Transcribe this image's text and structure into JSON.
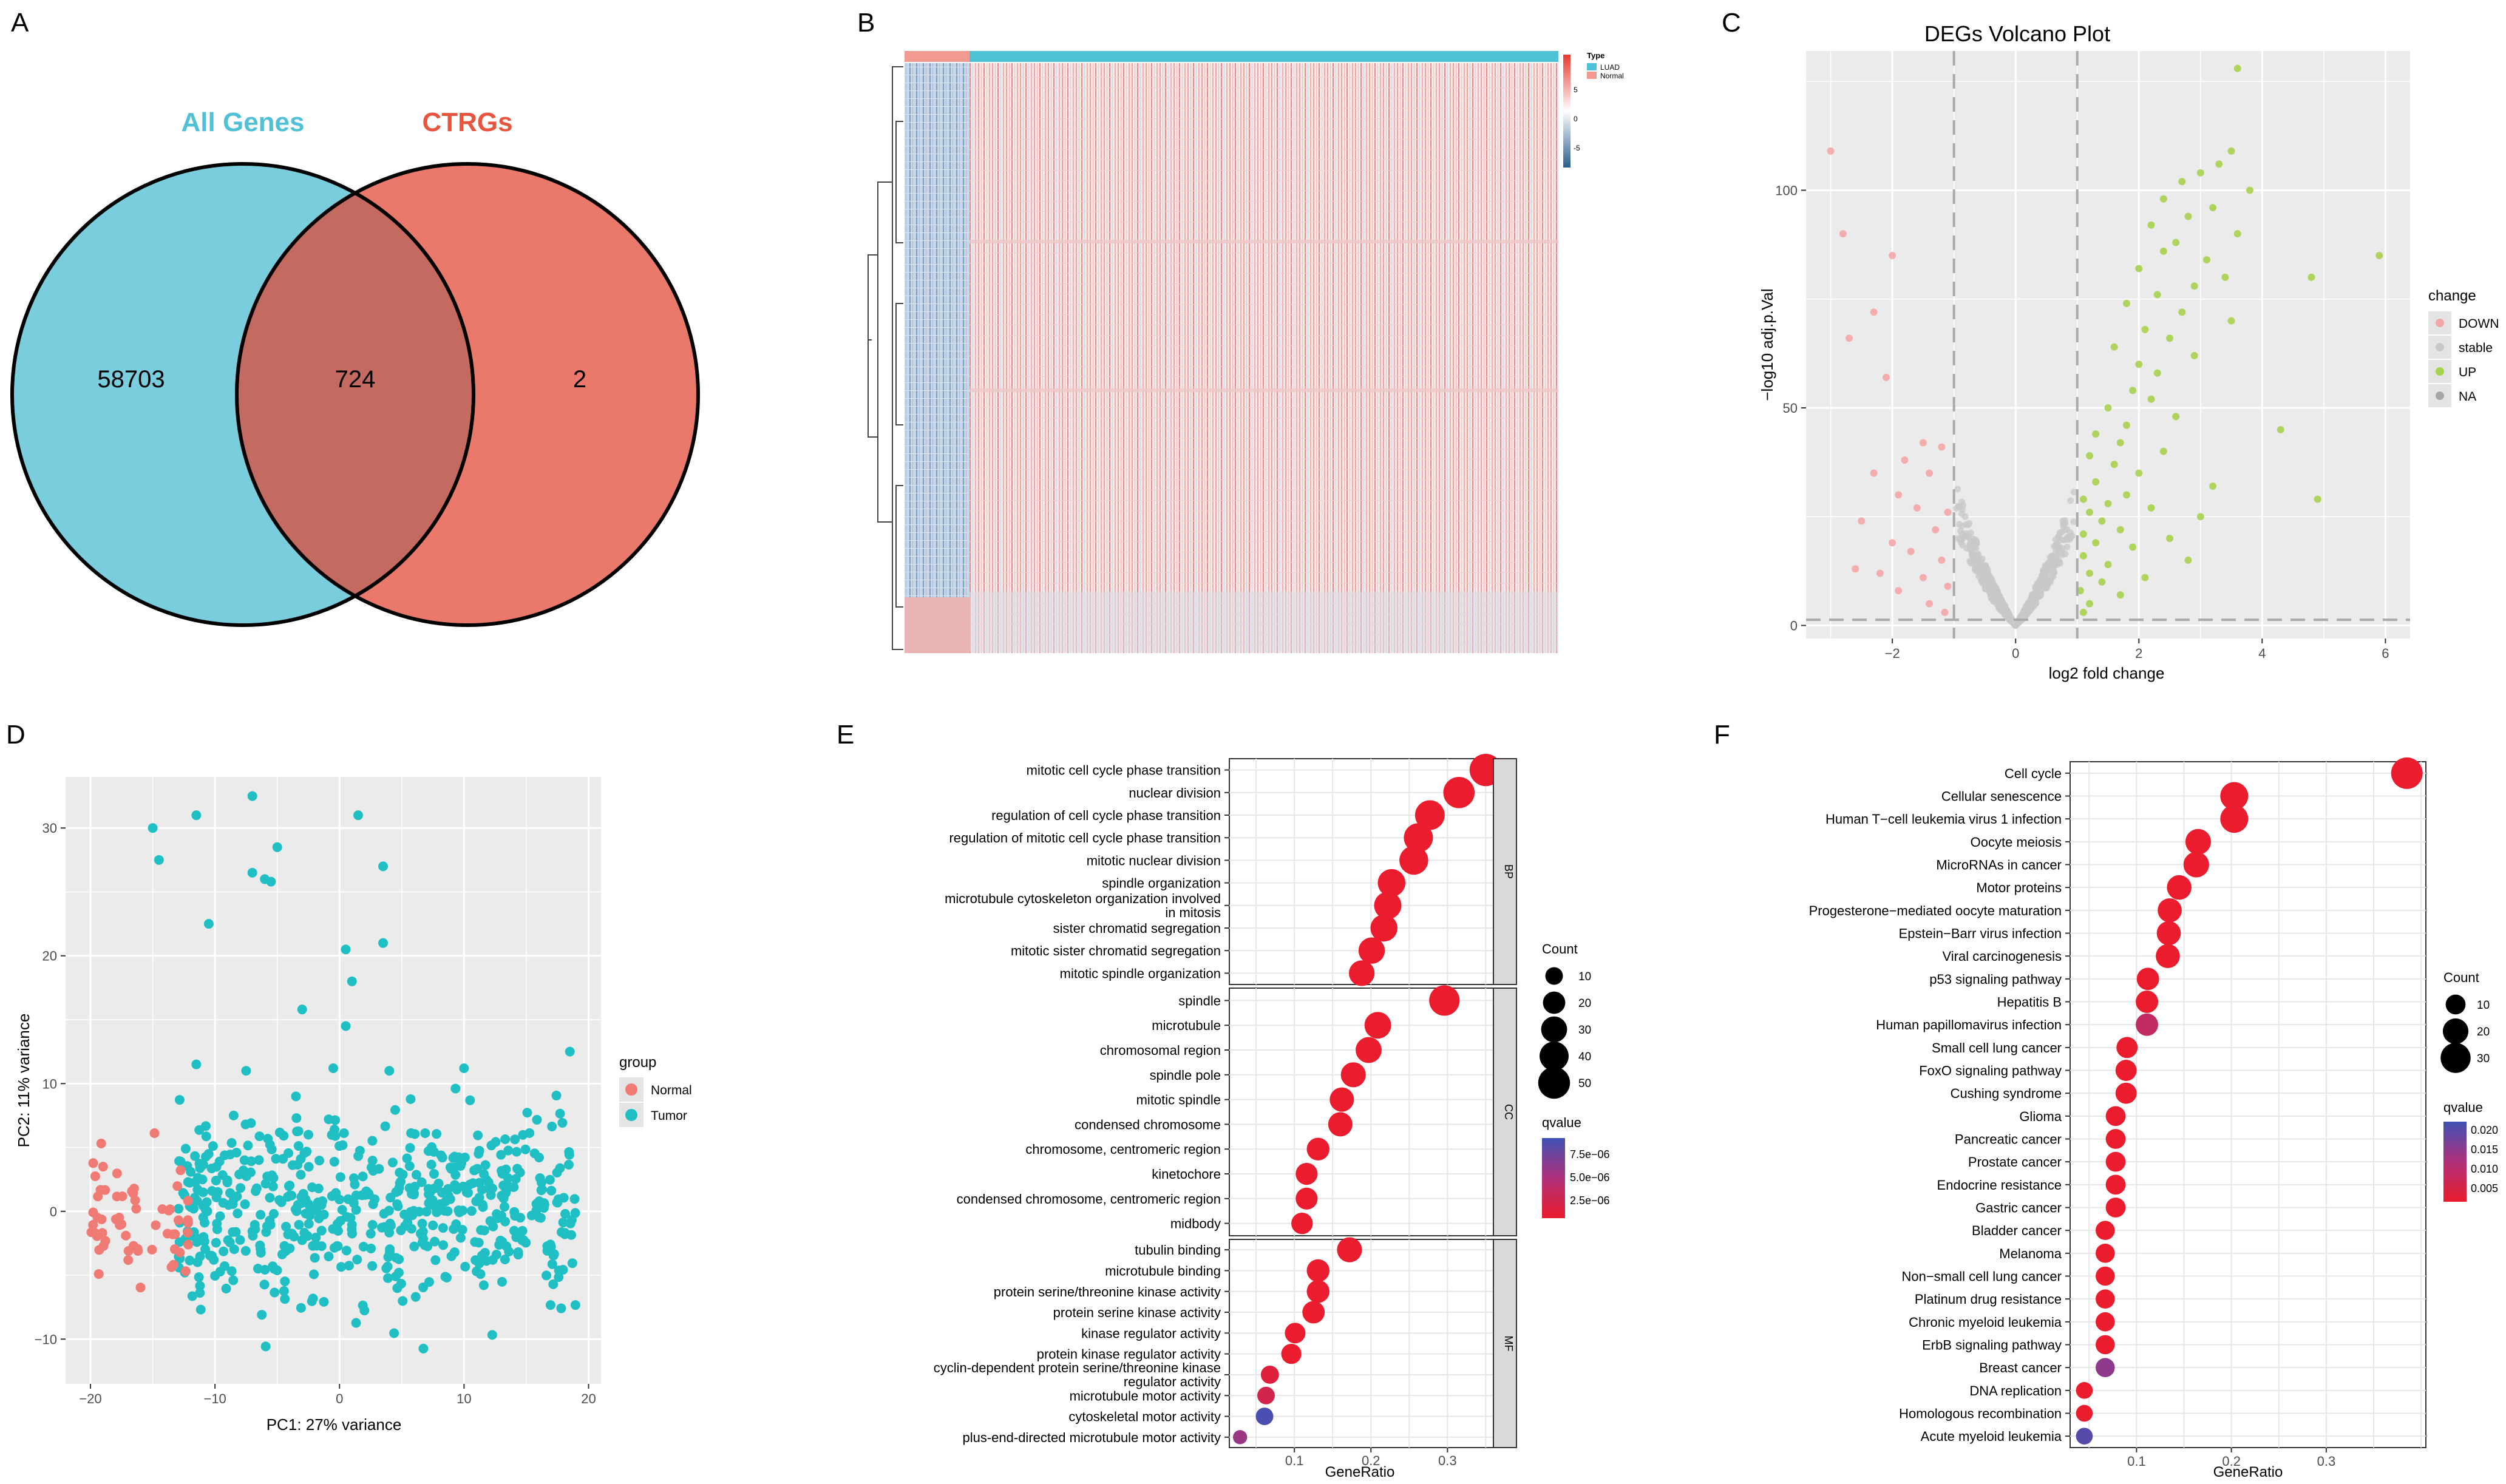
{
  "panel_labels": [
    "A",
    "B",
    "C",
    "D",
    "E",
    "F"
  ],
  "colors": {
    "venn_left": "#79CDDD",
    "venn_right": "#EA796C",
    "venn_overlap": "#C56A60",
    "title_left": "#4FC0D6",
    "title_right": "#E8553F",
    "panel_bg": "#EBEBEB",
    "grid": "#FFFFFF",
    "normal": "#F07A74",
    "tumor": "#1FBFC3",
    "down": "#F4A6A6",
    "stable": "#C8C8C8",
    "up": "#A7D24F",
    "na": "#A6A6A6",
    "heat_high": "#E8392F",
    "heat_low": "#2A5E8C",
    "q_low": "#EA1C2D",
    "q_high": "#3F51B5"
  },
  "chart_data": [
    {
      "type": "venn",
      "panel": "A",
      "sets": [
        "All Genes",
        "CTRGs"
      ],
      "counts": {
        "left_only": "58703",
        "both": "724",
        "right_only": "2"
      }
    },
    {
      "type": "heatmap",
      "panel": "B",
      "annotation_title": "Type",
      "groups": [
        "LUAD",
        "Normal"
      ],
      "colorbar_ticks": [
        "5",
        "0",
        "-5"
      ],
      "value_range": [
        -5,
        5
      ]
    },
    {
      "type": "scatter",
      "panel": "C",
      "title": "DEGs Volcano Plot",
      "xlabel": "log2 fold change",
      "ylabel": "−log10 adj.p.Val",
      "xlim": [
        -3.4,
        6.4
      ],
      "ylim": [
        -3,
        132
      ],
      "xticks": [
        -2,
        0,
        2,
        4,
        6
      ],
      "yticks": [
        0,
        50,
        100
      ],
      "vlines": [
        -1,
        1
      ],
      "hline": 1.3,
      "legend_title": "change",
      "legend": [
        "DOWN",
        "stable",
        "UP",
        "NA"
      ],
      "down_points": [
        [
          -3.0,
          109
        ],
        [
          -2.8,
          90
        ],
        [
          -2.0,
          85
        ],
        [
          -2.3,
          72
        ],
        [
          -2.7,
          66
        ],
        [
          -2.1,
          57
        ],
        [
          -1.8,
          38
        ],
        [
          -1.5,
          42
        ],
        [
          -1.2,
          41
        ],
        [
          -1.4,
          35
        ],
        [
          -2.3,
          35
        ],
        [
          -1.9,
          30
        ],
        [
          -1.6,
          27
        ],
        [
          -1.1,
          26
        ],
        [
          -2.5,
          24
        ],
        [
          -1.3,
          22
        ],
        [
          -2.0,
          19
        ],
        [
          -1.7,
          17
        ],
        [
          -1.2,
          15
        ],
        [
          -2.2,
          12
        ],
        [
          -1.5,
          11
        ],
        [
          -1.1,
          9
        ],
        [
          -2.6,
          13
        ],
        [
          -1.9,
          8
        ],
        [
          -1.4,
          5
        ],
        [
          -1.15,
          3
        ]
      ],
      "up_points": [
        [
          3.6,
          128
        ],
        [
          4.8,
          80
        ],
        [
          5.9,
          85
        ],
        [
          3.5,
          109
        ],
        [
          3.3,
          106
        ],
        [
          3.0,
          104
        ],
        [
          2.7,
          102
        ],
        [
          3.8,
          100
        ],
        [
          2.4,
          98
        ],
        [
          3.2,
          96
        ],
        [
          2.8,
          94
        ],
        [
          2.2,
          92
        ],
        [
          3.6,
          90
        ],
        [
          2.6,
          88
        ],
        [
          2.4,
          86
        ],
        [
          3.1,
          84
        ],
        [
          2.0,
          82
        ],
        [
          3.4,
          80
        ],
        [
          2.9,
          78
        ],
        [
          2.3,
          76
        ],
        [
          1.8,
          74
        ],
        [
          2.7,
          72
        ],
        [
          3.5,
          70
        ],
        [
          2.1,
          68
        ],
        [
          2.5,
          66
        ],
        [
          1.6,
          64
        ],
        [
          2.9,
          62
        ],
        [
          2.0,
          60
        ],
        [
          2.3,
          58
        ],
        [
          1.9,
          54
        ],
        [
          2.2,
          52
        ],
        [
          1.5,
          50
        ],
        [
          2.6,
          48
        ],
        [
          1.8,
          46
        ],
        [
          4.3,
          45
        ],
        [
          1.3,
          44
        ],
        [
          1.7,
          42
        ],
        [
          2.4,
          40
        ],
        [
          1.2,
          39
        ],
        [
          1.6,
          37
        ],
        [
          2.0,
          35
        ],
        [
          1.3,
          33
        ],
        [
          3.2,
          32
        ],
        [
          1.8,
          30
        ],
        [
          1.1,
          29
        ],
        [
          4.9,
          29
        ],
        [
          1.5,
          28
        ],
        [
          2.2,
          27
        ],
        [
          1.2,
          26
        ],
        [
          3.0,
          25
        ],
        [
          1.4,
          24
        ],
        [
          1.7,
          22
        ],
        [
          1.1,
          21
        ],
        [
          2.5,
          20
        ],
        [
          1.3,
          19
        ],
        [
          1.9,
          18
        ],
        [
          1.1,
          16
        ],
        [
          2.8,
          15
        ],
        [
          1.5,
          14
        ],
        [
          1.2,
          12
        ],
        [
          2.1,
          11
        ],
        [
          1.4,
          10
        ],
        [
          1.05,
          8
        ],
        [
          1.7,
          7
        ],
        [
          1.2,
          5
        ],
        [
          1.1,
          3
        ]
      ]
    },
    {
      "type": "scatter",
      "panel": "D",
      "xlabel": "PC1: 27% variance",
      "ylabel": "PC2: 11% variance",
      "xlim": [
        -22,
        21
      ],
      "ylim": [
        -13.5,
        34
      ],
      "xticks": [
        -20,
        -10,
        0,
        10,
        20
      ],
      "yticks": [
        -10,
        0,
        10,
        20,
        30
      ],
      "legend_title": "group",
      "legend": [
        "Normal",
        "Tumor"
      ],
      "tumor_outliers": [
        [
          -7,
          32.5
        ],
        [
          -15,
          30
        ],
        [
          -11.5,
          31
        ],
        [
          1.5,
          31
        ],
        [
          -5,
          28.5
        ],
        [
          -14.5,
          27.5
        ],
        [
          3.5,
          27
        ],
        [
          -7,
          26.5
        ],
        [
          -6,
          26
        ],
        [
          -5.5,
          25.8
        ],
        [
          -10.5,
          22.5
        ],
        [
          3.5,
          21
        ],
        [
          0.5,
          20.5
        ],
        [
          1,
          18
        ],
        [
          -3,
          15.8
        ],
        [
          0.5,
          14.5
        ],
        [
          18.5,
          12.5
        ],
        [
          -0.5,
          11.2
        ],
        [
          10,
          11.2
        ],
        [
          -11.5,
          11.5
        ],
        [
          -7.5,
          11
        ],
        [
          4,
          11
        ],
        [
          -3.5,
          9
        ],
        [
          -8.5,
          7.5
        ],
        [
          -2.5,
          6
        ]
      ]
    },
    {
      "type": "scatter",
      "panel": "E",
      "xlabel": "GeneRatio",
      "xlim": [
        0.015,
        0.36
      ],
      "xticks": [
        0.1,
        0.2,
        0.3
      ],
      "facets": [
        "BP",
        "CC",
        "MF"
      ],
      "size_legend_title": "Count",
      "size_legend": [
        10,
        20,
        30,
        40,
        50
      ],
      "color_legend_title": "qvalue",
      "color_legend": [
        "7.5e−06",
        "5.0e−06",
        "2.5e−06"
      ],
      "terms": [
        {
          "facet": "BP",
          "lines": [
            "mitotic cell cycle phase transition"
          ],
          "x": 0.35,
          "count": 52,
          "q": 0
        },
        {
          "facet": "BP",
          "lines": [
            "nuclear division"
          ],
          "x": 0.315,
          "count": 48,
          "q": 0
        },
        {
          "facet": "BP",
          "lines": [
            "regulation of cell cycle phase transition"
          ],
          "x": 0.277,
          "count": 42,
          "q": 0
        },
        {
          "facet": "BP",
          "lines": [
            "regulation of mitotic cell cycle phase transition"
          ],
          "x": 0.262,
          "count": 40,
          "q": 0
        },
        {
          "facet": "BP",
          "lines": [
            "mitotic nuclear division"
          ],
          "x": 0.256,
          "count": 39,
          "q": 0
        },
        {
          "facet": "BP",
          "lines": [
            "spindle organization"
          ],
          "x": 0.227,
          "count": 35,
          "q": 0
        },
        {
          "facet": "BP",
          "lines": [
            "microtubule cytoskeleton organization involved",
            "in mitosis"
          ],
          "x": 0.222,
          "count": 34,
          "q": 0
        },
        {
          "facet": "BP",
          "lines": [
            "sister chromatid segregation"
          ],
          "x": 0.217,
          "count": 33,
          "q": 0
        },
        {
          "facet": "BP",
          "lines": [
            "mitotic sister chromatid segregation"
          ],
          "x": 0.201,
          "count": 31,
          "q": 0
        },
        {
          "facet": "BP",
          "lines": [
            "mitotic spindle organization"
          ],
          "x": 0.188,
          "count": 29,
          "q": 0
        },
        {
          "facet": "CC",
          "lines": [
            "spindle"
          ],
          "x": 0.296,
          "count": 45,
          "q": 0
        },
        {
          "facet": "CC",
          "lines": [
            "microtubule"
          ],
          "x": 0.209,
          "count": 32,
          "q": 0
        },
        {
          "facet": "CC",
          "lines": [
            "chromosomal region"
          ],
          "x": 0.197,
          "count": 30,
          "q": 0
        },
        {
          "facet": "CC",
          "lines": [
            "spindle pole"
          ],
          "x": 0.177,
          "count": 27,
          "q": 0
        },
        {
          "facet": "CC",
          "lines": [
            "mitotic spindle"
          ],
          "x": 0.162,
          "count": 25,
          "q": 0
        },
        {
          "facet": "CC",
          "lines": [
            "condensed chromosome"
          ],
          "x": 0.16,
          "count": 25,
          "q": 0
        },
        {
          "facet": "CC",
          "lines": [
            "chromosome, centromeric region"
          ],
          "x": 0.131,
          "count": 21,
          "q": 0
        },
        {
          "facet": "CC",
          "lines": [
            "kinetochore"
          ],
          "x": 0.116,
          "count": 19,
          "q": 0
        },
        {
          "facet": "CC",
          "lines": [
            "condensed chromosome, centromeric region"
          ],
          "x": 0.116,
          "count": 19,
          "q": 0
        },
        {
          "facet": "CC",
          "lines": [
            "midbody"
          ],
          "x": 0.11,
          "count": 18,
          "q": 0
        },
        {
          "facet": "MF",
          "lines": [
            "tubulin binding"
          ],
          "x": 0.172,
          "count": 27,
          "q": 0
        },
        {
          "facet": "MF",
          "lines": [
            "microtubule binding"
          ],
          "x": 0.131,
          "count": 21,
          "q": 0
        },
        {
          "facet": "MF",
          "lines": [
            "protein serine/threonine kinase activity"
          ],
          "x": 0.131,
          "count": 21,
          "q": 0
        },
        {
          "facet": "MF",
          "lines": [
            "protein serine kinase activity"
          ],
          "x": 0.125,
          "count": 20,
          "q": 0
        },
        {
          "facet": "MF",
          "lines": [
            "kinase regulator activity"
          ],
          "x": 0.101,
          "count": 16,
          "q": 0
        },
        {
          "facet": "MF",
          "lines": [
            "protein kinase regulator activity"
          ],
          "x": 0.096,
          "count": 15,
          "q": 0
        },
        {
          "facet": "MF",
          "lines": [
            "cyclin-dependent protein serine/threonine kinase",
            "regulator activity"
          ],
          "x": 0.068,
          "count": 11,
          "q": 0.1
        },
        {
          "facet": "MF",
          "lines": [
            "microtubule motor activity"
          ],
          "x": 0.063,
          "count": 10,
          "q": 0.2
        },
        {
          "facet": "MF",
          "lines": [
            "cytoskeletal motor activity"
          ],
          "x": 0.061,
          "count": 10,
          "q": 0.95
        },
        {
          "facet": "MF",
          "lines": [
            "plus-end-directed microtubule motor activity"
          ],
          "x": 0.029,
          "count": 5,
          "q": 0.6
        }
      ]
    },
    {
      "type": "scatter",
      "panel": "F",
      "xlabel": "GeneRatio",
      "xlim": [
        0.03,
        0.405
      ],
      "xticks": [
        0.1,
        0.2,
        0.3
      ],
      "size_legend_title": "Count",
      "size_legend": [
        10,
        20,
        30
      ],
      "color_legend_title": "qvalue",
      "color_legend": [
        "0.020",
        "0.015",
        "0.010",
        "0.005"
      ],
      "terms": [
        {
          "label": "Cell cycle",
          "x": 0.385,
          "count": 34,
          "q": 0
        },
        {
          "label": "Cellular senescence",
          "x": 0.203,
          "count": 25,
          "q": 0
        },
        {
          "label": "Human T−cell leukemia virus 1 infection",
          "x": 0.203,
          "count": 25,
          "q": 0
        },
        {
          "label": "Oocyte meiosis",
          "x": 0.165,
          "count": 20,
          "q": 0
        },
        {
          "label": "MicroRNAs in cancer",
          "x": 0.163,
          "count": 20,
          "q": 0
        },
        {
          "label": "Motor proteins",
          "x": 0.145,
          "count": 18,
          "q": 0
        },
        {
          "label": "Progesterone−mediated oocyte maturation",
          "x": 0.135,
          "count": 17,
          "q": 0
        },
        {
          "label": "Epstein−Barr virus infection",
          "x": 0.134,
          "count": 17,
          "q": 0
        },
        {
          "label": "Viral carcinogenesis",
          "x": 0.133,
          "count": 17,
          "q": 0
        },
        {
          "label": "p53 signaling pathway",
          "x": 0.112,
          "count": 14,
          "q": 0
        },
        {
          "label": "Hepatitis B",
          "x": 0.111,
          "count": 14,
          "q": 0
        },
        {
          "label": "Human papillomavirus infection",
          "x": 0.111,
          "count": 14,
          "q": 0.35
        },
        {
          "label": "Small cell lung cancer",
          "x": 0.09,
          "count": 12,
          "q": 0
        },
        {
          "label": "FoxO signaling pathway",
          "x": 0.089,
          "count": 12,
          "q": 0
        },
        {
          "label": "Cushing syndrome",
          "x": 0.089,
          "count": 12,
          "q": 0
        },
        {
          "label": "Glioma",
          "x": 0.078,
          "count": 10,
          "q": 0
        },
        {
          "label": "Pancreatic cancer",
          "x": 0.078,
          "count": 10,
          "q": 0
        },
        {
          "label": "Prostate cancer",
          "x": 0.078,
          "count": 10,
          "q": 0
        },
        {
          "label": "Endocrine resistance",
          "x": 0.078,
          "count": 10,
          "q": 0
        },
        {
          "label": "Gastric cancer",
          "x": 0.078,
          "count": 10,
          "q": 0
        },
        {
          "label": "Bladder cancer",
          "x": 0.067,
          "count": 9,
          "q": 0
        },
        {
          "label": "Melanoma",
          "x": 0.067,
          "count": 9,
          "q": 0
        },
        {
          "label": "Non−small cell lung cancer",
          "x": 0.067,
          "count": 9,
          "q": 0
        },
        {
          "label": "Platinum drug resistance",
          "x": 0.067,
          "count": 9,
          "q": 0
        },
        {
          "label": "Chronic myeloid leukemia",
          "x": 0.067,
          "count": 9,
          "q": 0
        },
        {
          "label": "ErbB signaling pathway",
          "x": 0.067,
          "count": 9,
          "q": 0
        },
        {
          "label": "Breast cancer",
          "x": 0.067,
          "count": 9,
          "q": 0.65
        },
        {
          "label": "DNA replication",
          "x": 0.045,
          "count": 6,
          "q": 0
        },
        {
          "label": "Homologous recombination",
          "x": 0.045,
          "count": 6,
          "q": 0
        },
        {
          "label": "Acute myeloid leukemia",
          "x": 0.045,
          "count": 6,
          "q": 0.9
        }
      ]
    }
  ]
}
